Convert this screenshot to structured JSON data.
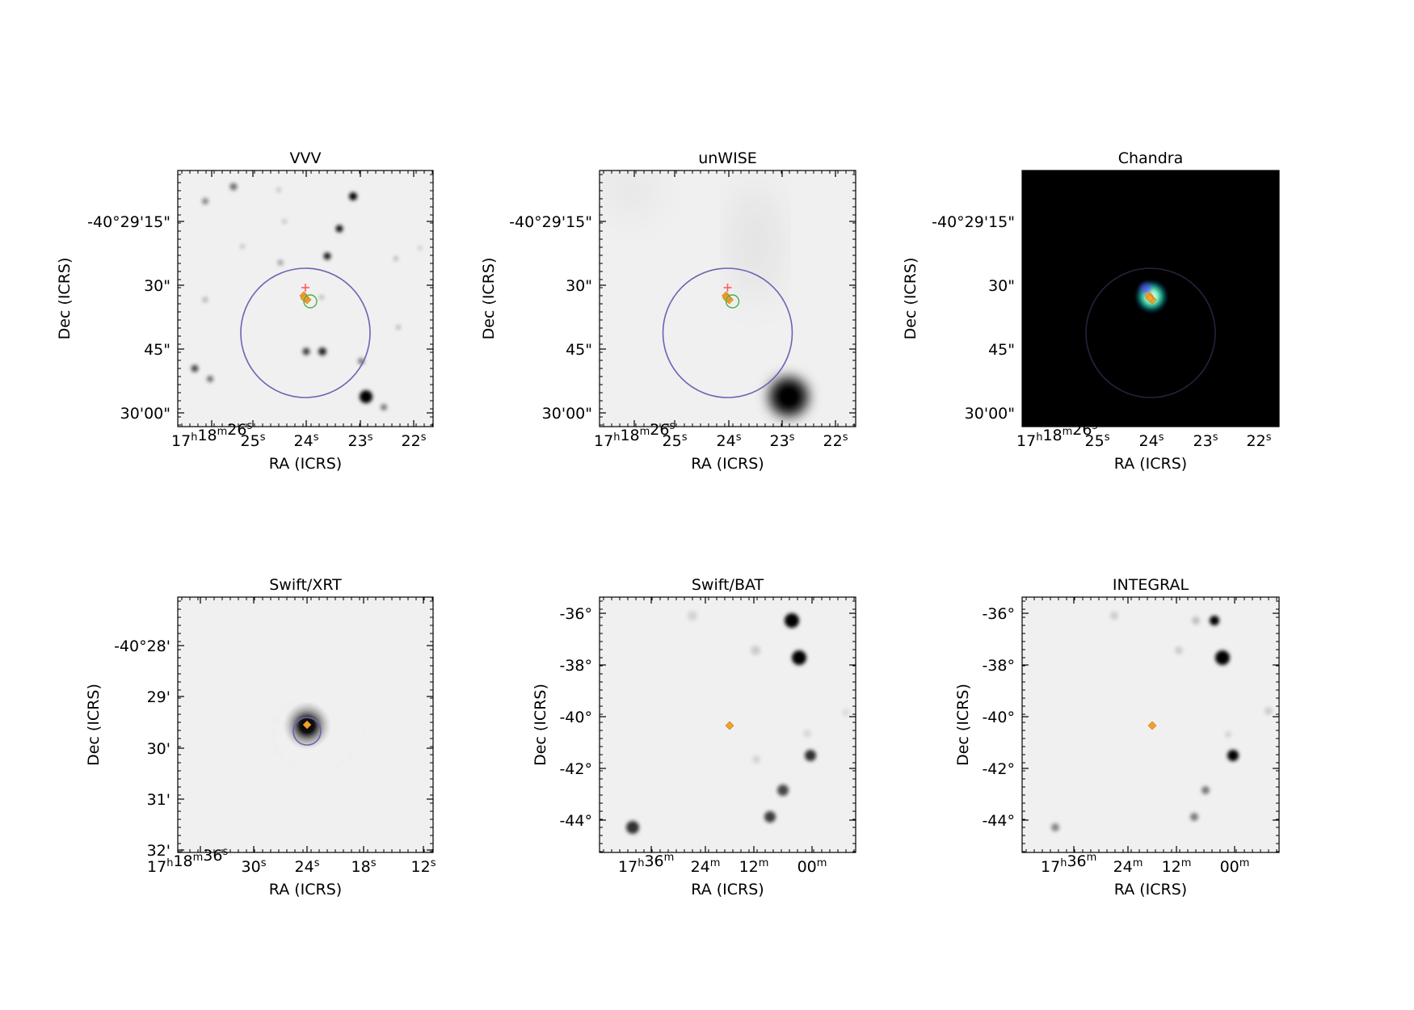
{
  "panels": [
    {
      "id": "vvv",
      "title": "VVV",
      "theme": "light",
      "xlabel": "RA (ICRS)",
      "ylabel": "Dec (ICRS)",
      "yticks": [
        "-40°29'15\"",
        "30\"",
        "45\"",
        "30'00\""
      ],
      "xticks": [
        {
          "main": "17",
          "u1": "h",
          "m2": "18",
          "u2": "m",
          "m3": "26",
          "u3": "s"
        },
        {
          "main": "25",
          "u1": "s"
        },
        {
          "main": "24",
          "u1": "s"
        },
        {
          "main": "23",
          "u1": "s"
        },
        {
          "main": "22",
          "u1": "s"
        }
      ],
      "markers": [
        "error-circle-large",
        "cross",
        "source-orange",
        "circle-green"
      ]
    },
    {
      "id": "unwise",
      "title": "unWISE",
      "theme": "light",
      "xlabel": "RA (ICRS)",
      "ylabel": "Dec (ICRS)",
      "yticks": [
        "-40°29'15\"",
        "30\"",
        "45\"",
        "30'00\""
      ],
      "xticks": [
        {
          "main": "17",
          "u1": "h",
          "m2": "18",
          "u2": "m",
          "m3": "26",
          "u3": "s"
        },
        {
          "main": "25",
          "u1": "s"
        },
        {
          "main": "24",
          "u1": "s"
        },
        {
          "main": "23",
          "u1": "s"
        },
        {
          "main": "22",
          "u1": "s"
        }
      ],
      "markers": [
        "error-circle-large",
        "cross",
        "source-orange",
        "circle-green"
      ]
    },
    {
      "id": "chandra",
      "title": "Chandra",
      "theme": "dark",
      "xlabel": "RA (ICRS)",
      "ylabel": "Dec (ICRS)",
      "yticks": [
        "-40°29'15\"",
        "30\"",
        "45\"",
        "30'00\""
      ],
      "xticks": [
        {
          "main": "17",
          "u1": "h",
          "m2": "18",
          "u2": "m",
          "m3": "26",
          "u3": "s"
        },
        {
          "main": "25",
          "u1": "s"
        },
        {
          "main": "24",
          "u1": "s"
        },
        {
          "main": "23",
          "u1": "s"
        },
        {
          "main": "22",
          "u1": "s"
        }
      ],
      "markers": [
        "error-circle-large",
        "source-orange"
      ]
    },
    {
      "id": "xrt",
      "title": "Swift/XRT",
      "theme": "light",
      "xlabel": "RA (ICRS)",
      "ylabel": "Dec (ICRS)",
      "yticks": [
        "-40°28'",
        "29'",
        "30'",
        "31'",
        "32'"
      ],
      "xticks": [
        {
          "main": "17",
          "u1": "h",
          "m2": "18",
          "u2": "m",
          "m3": "36",
          "u3": "s"
        },
        {
          "main": "30",
          "u1": "s"
        },
        {
          "main": "24",
          "u1": "s"
        },
        {
          "main": "18",
          "u1": "s"
        },
        {
          "main": "12",
          "u1": "s"
        }
      ],
      "markers": [
        "error-circle-small",
        "source-orange"
      ]
    },
    {
      "id": "bat",
      "title": "Swift/BAT",
      "theme": "light",
      "xlabel": "RA (ICRS)",
      "ylabel": "Dec (ICRS)",
      "yticks": [
        "-36°",
        "-38°",
        "-40°",
        "-42°",
        "-44°"
      ],
      "xticks": [
        {
          "main": "17",
          "u1": "h",
          "m2": "36",
          "u2": "m"
        },
        {
          "main": "24",
          "u1": "m"
        },
        {
          "main": "12",
          "u1": "m"
        },
        {
          "main": "00",
          "u1": "m"
        }
      ],
      "markers": [
        "source-orange"
      ]
    },
    {
      "id": "integral",
      "title": "INTEGRAL",
      "theme": "light",
      "xlabel": "RA (ICRS)",
      "ylabel": "Dec (ICRS)",
      "yticks": [
        "-36°",
        "-38°",
        "-40°",
        "-42°",
        "-44°"
      ],
      "xticks": [
        {
          "main": "17",
          "u1": "h",
          "m2": "36",
          "u2": "m"
        },
        {
          "main": "24",
          "u1": "m"
        },
        {
          "main": "12",
          "u1": "m"
        },
        {
          "main": "00",
          "u1": "m"
        }
      ],
      "markers": [
        "source-orange"
      ]
    }
  ],
  "colors": {
    "background_light": "#f0f0f0",
    "background_dark": "#000000",
    "error_circle": "#6a64b2",
    "cross": "#ff5a5a",
    "source": "#f2a12e",
    "counterpart": "#4caf50"
  }
}
